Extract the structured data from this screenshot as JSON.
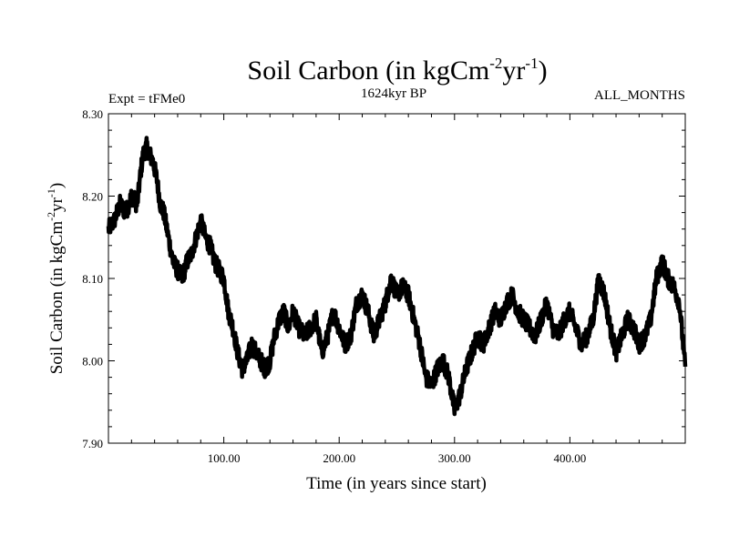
{
  "chart_data": {
    "type": "line",
    "title": "Soil Carbon (in kgCm",
    "title_exp1": "-2",
    "title_mid": "yr",
    "title_exp2": "-1",
    "title_end": ")",
    "subtitle_left": "Expt = tFMe0",
    "subtitle_center": "1624kyr BP",
    "subtitle_right": "ALL_MONTHS",
    "xlabel": "Time (in years since start)",
    "ylabel": "Soil Carbon (in kgCm",
    "ylabel_exp1": "-2",
    "ylabel_mid": "yr",
    "ylabel_exp2": "-1",
    "ylabel_end": ")",
    "xlim": [
      0,
      500
    ],
    "ylim": [
      7.9,
      8.3
    ],
    "xticks": [
      100,
      200,
      300,
      400
    ],
    "xtick_labels": [
      "100.00",
      "200.00",
      "300.00",
      "400.00"
    ],
    "yticks": [
      7.9,
      8.0,
      8.1,
      8.2,
      8.3
    ],
    "ytick_labels": [
      "7.90",
      "8.00",
      "8.10",
      "8.20",
      "8.30"
    ],
    "series": [
      {
        "name": "Soil Carbon",
        "color": "#000000",
        "x": [
          0,
          5,
          10,
          15,
          20,
          25,
          28,
          30,
          33,
          36,
          39,
          42,
          45,
          48,
          52,
          56,
          60,
          64,
          68,
          72,
          76,
          80,
          84,
          88,
          92,
          96,
          100,
          104,
          108,
          112,
          116,
          120,
          124,
          128,
          132,
          136,
          140,
          144,
          148,
          152,
          156,
          160,
          165,
          170,
          175,
          180,
          185,
          190,
          195,
          200,
          205,
          210,
          215,
          220,
          225,
          230,
          235,
          240,
          245,
          250,
          255,
          260,
          265,
          270,
          275,
          280,
          285,
          290,
          295,
          300,
          305,
          310,
          315,
          320,
          325,
          330,
          335,
          340,
          345,
          350,
          355,
          360,
          365,
          370,
          375,
          380,
          385,
          390,
          395,
          400,
          405,
          410,
          415,
          420,
          425,
          430,
          435,
          440,
          445,
          450,
          455,
          460,
          465,
          470,
          475,
          480,
          485,
          490,
          495,
          500
        ],
        "values": [
          8.16,
          8.17,
          8.19,
          8.18,
          8.2,
          8.19,
          8.23,
          8.25,
          8.26,
          8.25,
          8.24,
          8.22,
          8.19,
          8.18,
          8.15,
          8.12,
          8.11,
          8.1,
          8.12,
          8.13,
          8.15,
          8.17,
          8.15,
          8.14,
          8.12,
          8.11,
          8.1,
          8.06,
          8.04,
          8.01,
          7.99,
          8.0,
          8.02,
          8.01,
          8.0,
          7.99,
          8.0,
          8.03,
          8.05,
          8.06,
          8.04,
          8.06,
          8.04,
          8.03,
          8.04,
          8.05,
          8.01,
          8.03,
          8.06,
          8.04,
          8.02,
          8.03,
          8.07,
          8.08,
          8.06,
          8.03,
          8.05,
          8.07,
          8.1,
          8.08,
          8.09,
          8.08,
          8.05,
          8.02,
          7.98,
          7.97,
          7.99,
          8.0,
          7.98,
          7.94,
          7.96,
          7.99,
          8.01,
          8.03,
          8.02,
          8.04,
          8.06,
          8.05,
          8.07,
          8.08,
          8.06,
          8.05,
          8.04,
          8.03,
          8.05,
          8.07,
          8.04,
          8.03,
          8.05,
          8.06,
          8.04,
          8.02,
          8.03,
          8.05,
          8.1,
          8.08,
          8.04,
          8.01,
          8.03,
          8.05,
          8.04,
          8.02,
          8.03,
          8.05,
          8.1,
          8.12,
          8.1,
          8.09,
          8.07,
          7.99
        ]
      }
    ]
  }
}
